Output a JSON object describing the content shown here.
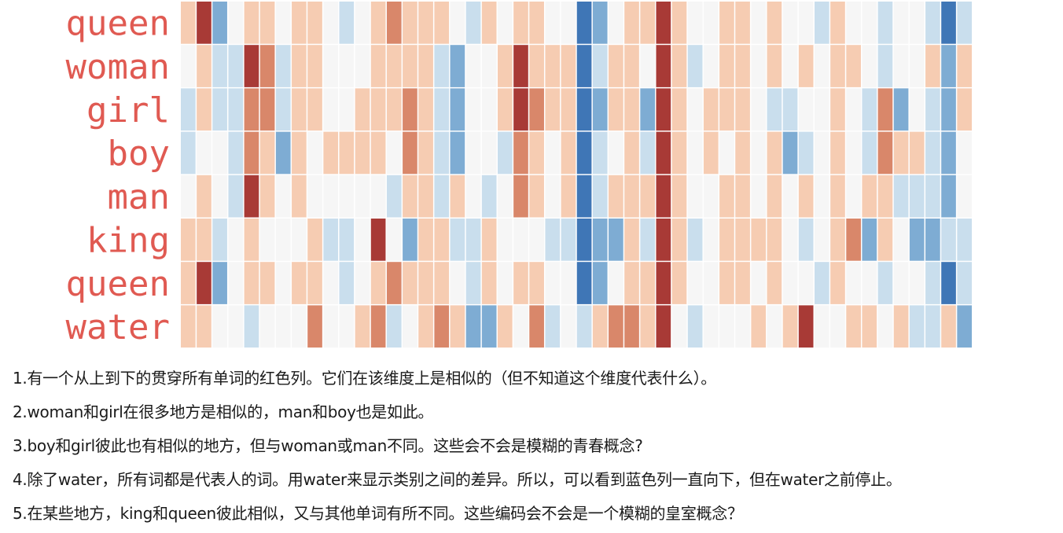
{
  "chart_data": {
    "type": "heatmap",
    "rows": [
      "queen",
      "woman",
      "girl",
      "boy",
      "man",
      "king",
      "queen",
      "water"
    ],
    "columns": 50,
    "color_scale": "red-white-blue diverging: positive red, negative blue",
    "palette": [
      "#3f76b6",
      "#7eacd3",
      "#c9deed",
      "#f6f6f6",
      "#f6ccb2",
      "#d9876a",
      "#a83a36"
    ],
    "grid": false,
    "legend": "none",
    "values": [
      [
        1,
        3,
        -2,
        0,
        1,
        1,
        0,
        1,
        1,
        0,
        -1,
        0,
        1,
        2,
        1,
        1,
        1,
        0,
        -1,
        1,
        0,
        1,
        1,
        0,
        0,
        -3,
        -2,
        0,
        1,
        1,
        3,
        1,
        0,
        0,
        1,
        1,
        0,
        1,
        0,
        0,
        -1,
        1,
        0,
        0,
        -1,
        0,
        0,
        -1,
        -3,
        -1
      ],
      [
        0,
        1,
        -1,
        -1,
        3,
        2,
        -1,
        1,
        1,
        0,
        0,
        0,
        1,
        1,
        1,
        1,
        -1,
        -2,
        0,
        0,
        1,
        3,
        1,
        1,
        1,
        -3,
        -1,
        1,
        1,
        0,
        3,
        1,
        -1,
        0,
        1,
        1,
        0,
        1,
        0,
        1,
        0,
        1,
        1,
        0,
        -1,
        0,
        0,
        1,
        -2,
        1
      ],
      [
        -1,
        1,
        -1,
        -1,
        2,
        2,
        -1,
        1,
        1,
        0,
        0,
        1,
        1,
        1,
        2,
        1,
        -1,
        -2,
        0,
        0,
        1,
        3,
        2,
        1,
        1,
        -3,
        -2,
        1,
        1,
        -2,
        3,
        1,
        0,
        1,
        1,
        1,
        0,
        -1,
        -1,
        0,
        0,
        1,
        0,
        -1,
        2,
        -2,
        0,
        -1,
        -2,
        1
      ],
      [
        -1,
        0,
        0,
        -1,
        2,
        1,
        -2,
        1,
        0,
        1,
        1,
        1,
        1,
        0,
        2,
        1,
        -1,
        -2,
        0,
        0,
        -1,
        2,
        1,
        0,
        1,
        -3,
        -1,
        0,
        1,
        -1,
        3,
        1,
        0,
        1,
        0,
        1,
        0,
        1,
        -2,
        -1,
        0,
        1,
        0,
        -1,
        2,
        1,
        1,
        -1,
        -2,
        0
      ],
      [
        0,
        1,
        0,
        -1,
        3,
        1,
        0,
        1,
        0,
        0,
        0,
        0,
        0,
        -1,
        1,
        1,
        -1,
        1,
        0,
        -1,
        0,
        2,
        1,
        0,
        1,
        -3,
        -1,
        1,
        1,
        1,
        3,
        1,
        0,
        0,
        1,
        1,
        0,
        1,
        0,
        1,
        0,
        1,
        0,
        1,
        1,
        -1,
        -1,
        -1,
        -2,
        0
      ],
      [
        1,
        1,
        -1,
        0,
        1,
        0,
        0,
        0,
        1,
        -1,
        -1,
        0,
        3,
        0,
        -2,
        1,
        1,
        -1,
        -1,
        1,
        0,
        0,
        0,
        -1,
        -1,
        -3,
        -2,
        -2,
        1,
        -1,
        3,
        1,
        -1,
        0,
        1,
        1,
        1,
        1,
        0,
        -1,
        0,
        1,
        2,
        -2,
        1,
        0,
        -2,
        -2,
        -1,
        -1
      ],
      [
        1,
        3,
        -2,
        0,
        1,
        1,
        0,
        1,
        1,
        0,
        -1,
        0,
        1,
        2,
        1,
        1,
        1,
        0,
        -1,
        1,
        0,
        1,
        1,
        0,
        0,
        -3,
        -2,
        0,
        1,
        1,
        3,
        1,
        0,
        0,
        1,
        1,
        0,
        1,
        0,
        0,
        -1,
        1,
        0,
        0,
        -1,
        0,
        0,
        -1,
        -3,
        -1
      ],
      [
        1,
        1,
        0,
        0,
        -1,
        0,
        0,
        0,
        2,
        0,
        0,
        1,
        2,
        -1,
        0,
        1,
        2,
        1,
        -2,
        -2,
        1,
        0,
        2,
        -1,
        0,
        -1,
        1,
        2,
        2,
        1,
        3,
        0,
        -1,
        0,
        0,
        0,
        1,
        0,
        1,
        3,
        0,
        0,
        1,
        1,
        0,
        1,
        -1,
        -1,
        1,
        -2
      ]
    ]
  },
  "notes": [
    "1.有一个从上到下的贯穿所有单词的红色列。它们在该维度上是相似的（但不知道这个维度代表什么）。",
    "2.woman和girl在很多地方是相似的，man和boy也是如此。",
    "3.boy和girl彼此也有相似的地方，但与woman或man不同。这些会不会是模糊的青春概念?",
    "4.除了water，所有词都是代表人的词。用water来显示类别之间的差异。所以，可以看到蓝色列一直向下，但在water之前停止。",
    "5.在某些地方，king和queen彼此相似，又与其他单词有所不同。这些编码会不会是一个模糊的皇室概念？"
  ]
}
